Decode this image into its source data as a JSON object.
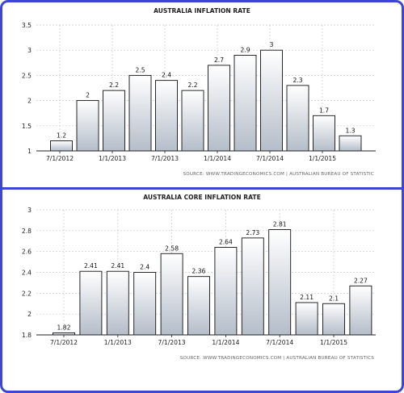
{
  "chart_data": [
    {
      "type": "bar",
      "title": "AUSTRALIA INFLATION RATE",
      "source": "SOURCE: WWW.TRADINGECONOMICS.COM  |  AUSTRALIAN BUREAU OF STATISTIC",
      "values": [
        1.2,
        2.0,
        2.2,
        2.5,
        2.4,
        2.2,
        2.7,
        2.9,
        3.0,
        2.3,
        1.7,
        1.3
      ],
      "value_labels": [
        "1.2",
        "2",
        "2.2",
        "2.5",
        "2.4",
        "2.2",
        "2.7",
        "2.9",
        "3",
        "2.3",
        "1.7",
        "1.3"
      ],
      "x_tick_labels": [
        "7/1/2012",
        "1/1/2013",
        "7/1/2013",
        "1/1/2014",
        "7/1/2014",
        "1/1/2015"
      ],
      "y_tick_labels": [
        "1",
        "1.5",
        "2",
        "2.5",
        "3",
        "3.5"
      ],
      "ylim": [
        1,
        3.5
      ],
      "grid": true,
      "colors": {
        "bar_top": "#ffffff",
        "bar_bottom": "#b4bdc9",
        "frame": "#3b46d6"
      }
    },
    {
      "type": "bar",
      "title": "AUSTRALIA CORE INFLATION RATE",
      "source": "SOURCE: WWW.TRADINGECONOMICS.COM  |  AUSTRALIAN BUREAU OF STATISTICS",
      "values": [
        1.82,
        2.41,
        2.41,
        2.4,
        2.58,
        2.36,
        2.64,
        2.73,
        2.81,
        2.11,
        2.1,
        2.27
      ],
      "value_labels": [
        "1.82",
        "2.41",
        "2.41",
        "2.4",
        "2.58",
        "2.36",
        "2.64",
        "2.73",
        "2.81",
        "2.11",
        "2.1",
        "2.27"
      ],
      "x_tick_labels": [
        "7/1/2012",
        "1/1/2013",
        "7/1/2013",
        "1/1/2014",
        "7/1/2014",
        "1/1/2015"
      ],
      "y_tick_labels": [
        "1.8",
        "2",
        "2.2",
        "2.4",
        "2.6",
        "2.8",
        "3"
      ],
      "ylim": [
        1.8,
        3
      ],
      "grid": true,
      "colors": {
        "bar_top": "#ffffff",
        "bar_bottom": "#b4bdc9",
        "frame": "#3b46d6"
      }
    }
  ]
}
